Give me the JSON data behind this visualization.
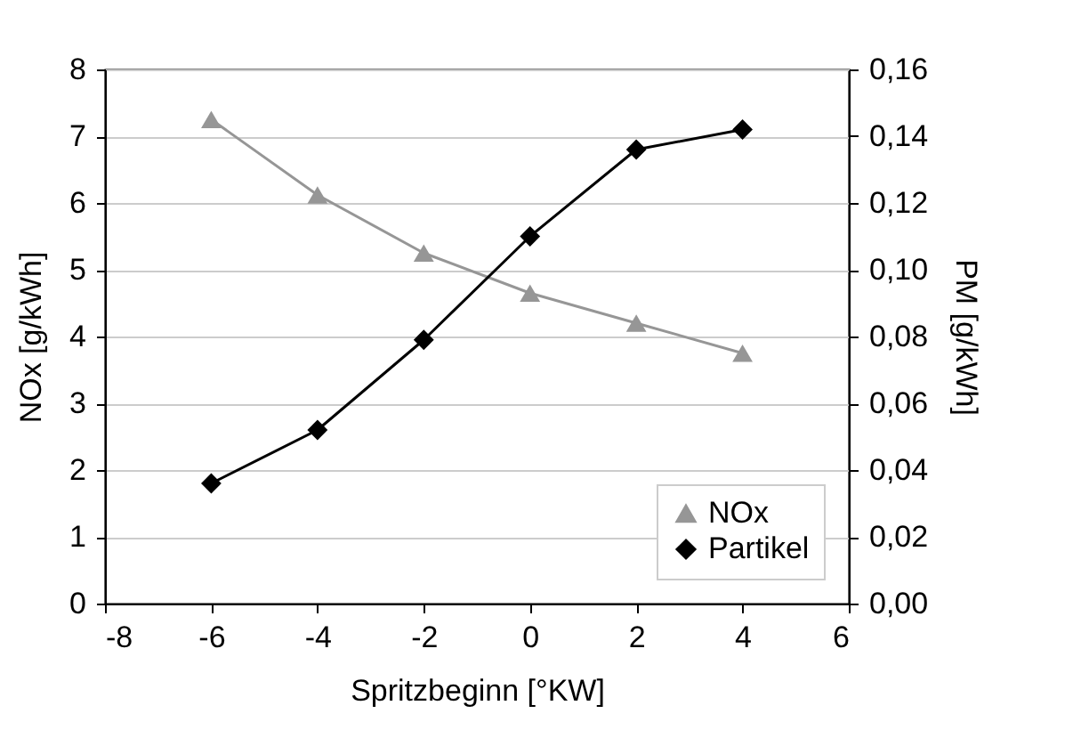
{
  "chart_data": {
    "type": "line",
    "xlabel": "Spritzbeginn [°KW]",
    "ylabel": "NOx [g/kWh]",
    "y2label": "PM [g/kWh]",
    "x": [
      -6,
      -4,
      -2,
      0,
      2,
      4
    ],
    "xlim": [
      -8,
      6
    ],
    "xticks": [
      -8,
      -6,
      -4,
      -2,
      0,
      2,
      4,
      6
    ],
    "ylim": [
      0,
      8
    ],
    "yticks": [
      0,
      1,
      2,
      3,
      4,
      5,
      6,
      7,
      8
    ],
    "y2lim": [
      0,
      0.16
    ],
    "y2ticks": [
      {
        "value": 0,
        "label": "0,00"
      },
      {
        "value": 0.02,
        "label": "0,02"
      },
      {
        "value": 0.04,
        "label": "0,04"
      },
      {
        "value": 0.06,
        "label": "0,06"
      },
      {
        "value": 0.08,
        "label": "0,08"
      },
      {
        "value": 0.1,
        "label": "0,10"
      },
      {
        "value": 0.12,
        "label": "0,12"
      },
      {
        "value": 0.14,
        "label": "0,14"
      },
      {
        "value": 0.16,
        "label": "0,16"
      }
    ],
    "series": [
      {
        "name": "NOx",
        "color": "#969696",
        "marker": "triangle",
        "values": [
          7.25,
          6.12,
          5.25,
          4.65,
          4.2,
          3.75
        ]
      },
      {
        "name": "Partikel",
        "color": "#000000",
        "marker": "diamond",
        "axis": "y2",
        "values": [
          0.036,
          0.052,
          0.079,
          0.11,
          0.136,
          0.142
        ]
      }
    ],
    "grid": "y",
    "legend": "bottom right",
    "line_style": "solid"
  }
}
